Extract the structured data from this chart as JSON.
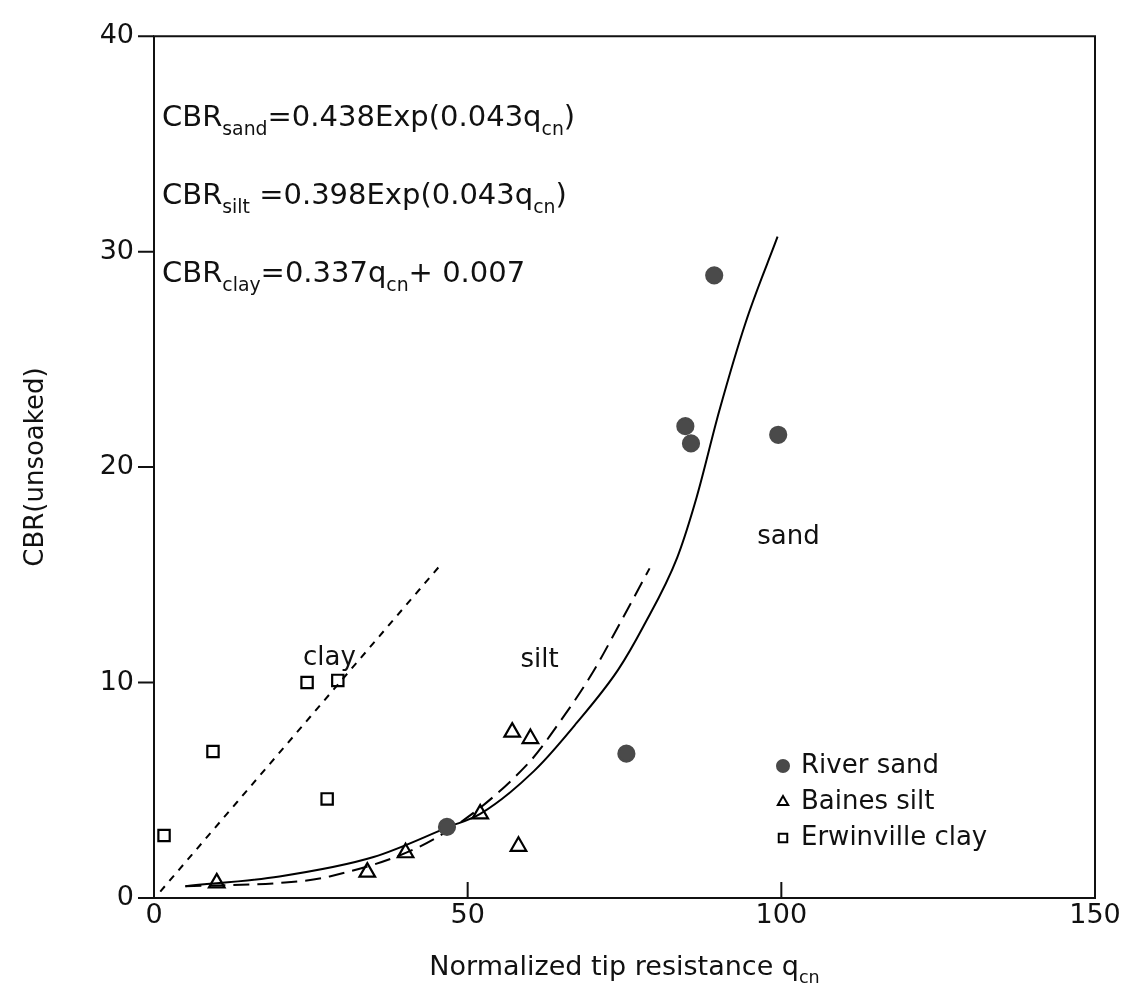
{
  "chart_data": {
    "type": "scatter",
    "xlabel": "Normalized tip resistance q$_{cn}$",
    "ylabel": "CBR(unsoaked)",
    "xlim": [
      0,
      150
    ],
    "xticks": [
      0,
      50,
      100,
      150
    ],
    "ylim": [
      0,
      40
    ],
    "yticks": [
      0,
      10,
      20,
      30,
      40
    ],
    "grid": false,
    "legend": "bottom right",
    "series": [
      {
        "name": "River sand",
        "marker": "circle",
        "color": "#4a4a4a",
        "x": [
          46.7,
          89.3,
          84.7,
          85.6,
          99.5,
          75.3
        ],
        "values": [
          3.3,
          28.9,
          21.9,
          21.1,
          21.5,
          6.7
        ]
      },
      {
        "name": "Baines silt",
        "marker": "triangle",
        "color": "#000000",
        "x": [
          10,
          34,
          40.1,
          52,
          57.1,
          60,
          58.1
        ],
        "values": [
          0.7,
          1.2,
          2.1,
          3.9,
          7.7,
          7.4,
          2.4
        ]
      },
      {
        "name": "Erwinville clay",
        "marker": "square",
        "color": "#000000",
        "x": [
          24.4,
          29.3,
          9.4,
          27.6,
          1.6
        ],
        "values": [
          10,
          10.1,
          6.8,
          4.6,
          2.9
        ]
      },
      {
        "name": "sand",
        "type": "line",
        "marker": "none",
        "line_style": "solid",
        "color": "#000000",
        "x": [
          5,
          20,
          35,
          47,
          52,
          60.6,
          67.3,
          74,
          78,
          83.4,
          86.5,
          90.1,
          94.3,
          99.4
        ],
        "values": [
          0.55,
          1,
          1.9,
          3.3,
          3.9,
          5.9,
          8.1,
          10.6,
          12.6,
          15.8,
          18.6,
          22.6,
          26.7,
          30.7
        ]
      },
      {
        "name": "silt",
        "type": "line",
        "marker": "none",
        "line_style": "dashed",
        "color": "#000000",
        "x": [
          5,
          20,
          28,
          45,
          59.5,
          65,
          70,
          74,
          79
        ],
        "values": [
          0.55,
          0.7,
          1,
          2.8,
          6.2,
          8.3,
          10.5,
          12.6,
          15.3
        ]
      },
      {
        "name": "clay",
        "type": "line",
        "marker": "none",
        "line_style": "dotted",
        "color": "#000000",
        "x": [
          1,
          45.5
        ],
        "values": [
          0.3,
          15.4
        ]
      }
    ],
    "annotations": [
      "CBR$_{sand}$=0.438Exp(0.043q$_{cn}$)",
      "CBR$_{silt}$ =0.398Exp(0.043q$_{cn}$)",
      "CBR$_{clay}$=0.337q$_{cn}$+ 0.007"
    ]
  }
}
